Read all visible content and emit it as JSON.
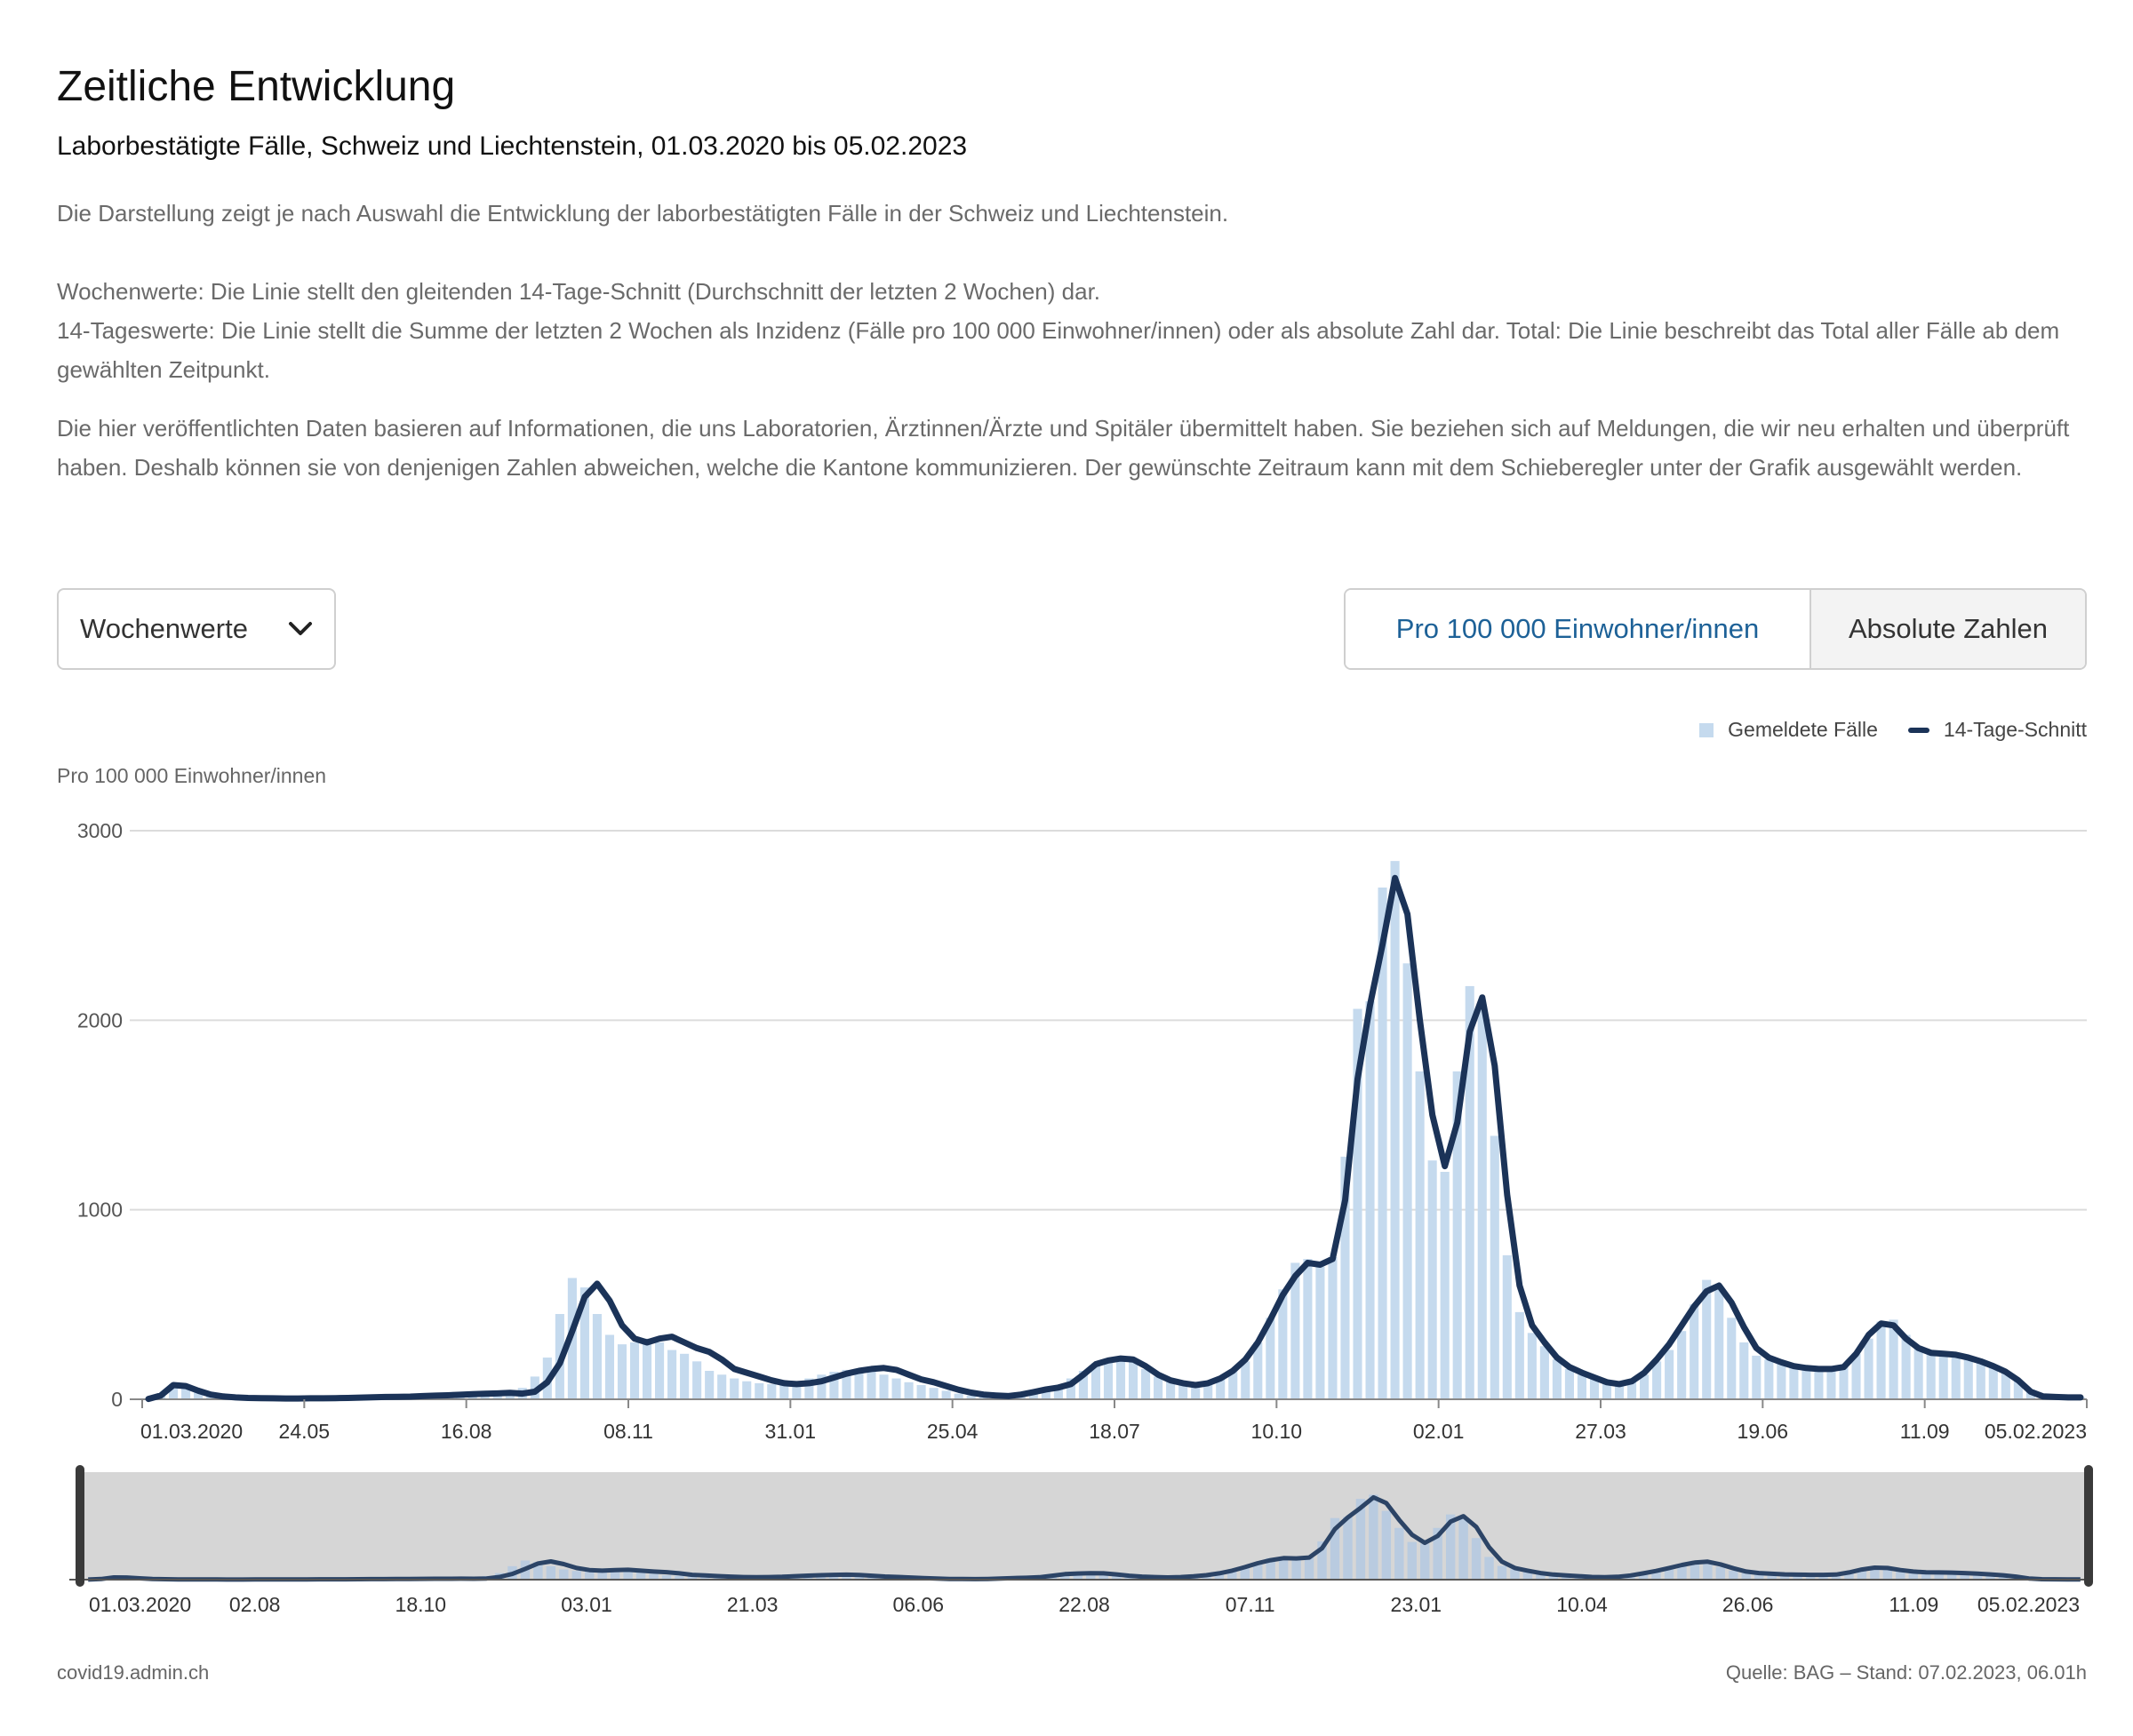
{
  "header": {
    "title": "Zeitliche Entwicklung",
    "subtitle": "Laborbestätigte Fälle, Schweiz und Liechtenstein, 01.03.2020 bis 05.02.2023"
  },
  "description": {
    "p1": "Die Darstellung zeigt je nach Auswahl die Entwicklung der laborbestätigten Fälle in der Schweiz und Liechtenstein.",
    "p2a": "Wochenwerte: Die Linie stellt den gleitenden 14-Tage-Schnitt (Durchschnitt der letzten 2 Wochen) dar.",
    "p2b": "14-Tageswerte: Die Linie stellt die Summe der letzten 2 Wochen als Inzidenz (Fälle pro 100 000 Einwohner/innen) oder als absolute Zahl dar. Total: Die Linie beschreibt das Total aller Fälle ab dem gewählten Zeitpunkt.",
    "p3": "Die hier veröffentlichten Daten basieren auf Informationen, die uns Laboratorien, Ärztinnen/Ärzte und Spitäler übermittelt haben. Sie beziehen sich auf Meldungen, die wir neu erhalten und überprüft haben. Deshalb können sie von denjenigen Zahlen abweichen, welche die Kantone kommunizieren. Der gewünschte Zeitraum kann mit dem Schieberegler unter der Grafik ausgewählt werden."
  },
  "controls": {
    "period_select": "Wochenwerte",
    "toggle": {
      "active": "Pro 100 000 Einwohner/innen",
      "inactive": "Absolute Zahlen"
    }
  },
  "legend": {
    "bars": "Gemeldete Fälle",
    "line": "14-Tage-Schnitt"
  },
  "footer": {
    "source_site": "covid19.admin.ch",
    "source_note": "Quelle: BAG – Stand: 07.02.2023, 06.01h"
  },
  "colors": {
    "bar": "#c5daee",
    "line": "#1b3358",
    "active_toggle_text": "#1d6197",
    "brush_bg": "#d6d6d6"
  },
  "chart_data": {
    "type": "bar",
    "ylabel": "Pro 100 000 Einwohner/innen",
    "ylim": [
      0,
      3000
    ],
    "yticks": [
      0,
      1000,
      2000,
      3000
    ],
    "grid": true,
    "legend_position": "top-right",
    "x_range": [
      "01.03.2020",
      "05.02.2023"
    ],
    "xtick_labels": [
      "01.03.2020",
      "24.05",
      "16.08",
      "08.11",
      "31.01",
      "25.04",
      "18.07",
      "10.10",
      "02.01",
      "27.03",
      "19.06",
      "11.09",
      "05.02.2023"
    ],
    "navigator_xtick_labels": [
      "01.03.2020",
      "02.08",
      "18.10",
      "03.01",
      "21.03",
      "06.06",
      "22.08",
      "07.11",
      "23.01",
      "10.04",
      "26.06",
      "11.09",
      "05.02.2023"
    ],
    "series": [
      {
        "name": "Gemeldete Fälle",
        "type": "bar",
        "values": [
          2,
          30,
          80,
          60,
          35,
          20,
          12,
          8,
          6,
          5,
          4,
          4,
          4,
          5,
          5,
          6,
          8,
          10,
          12,
          12,
          14,
          15,
          18,
          20,
          22,
          25,
          28,
          30,
          32,
          35,
          60,
          120,
          220,
          450,
          640,
          590,
          450,
          340,
          290,
          300,
          320,
          300,
          260,
          240,
          200,
          150,
          130,
          110,
          95,
          85,
          80,
          85,
          95,
          110,
          130,
          145,
          155,
          160,
          150,
          130,
          110,
          90,
          75,
          60,
          45,
          30,
          20,
          15,
          12,
          18,
          28,
          40,
          55,
          75,
          110,
          150,
          190,
          205,
          215,
          210,
          160,
          120,
          95,
          80,
          75,
          85,
          110,
          150,
          200,
          300,
          430,
          580,
          720,
          740,
          700,
          750,
          1280,
          2060,
          2100,
          2700,
          2840,
          2300,
          1730,
          1260,
          1200,
          1730,
          2180,
          2080,
          1390,
          760,
          460,
          350,
          280,
          210,
          160,
          130,
          110,
          95,
          85,
          90,
          130,
          200,
          260,
          360,
          500,
          630,
          590,
          430,
          300,
          230,
          210,
          190,
          180,
          170,
          160,
          160,
          170,
          240,
          320,
          410,
          420,
          340,
          280,
          250,
          240,
          230,
          220,
          200,
          180,
          140,
          100,
          50,
          20,
          12,
          10,
          10
        ]
      },
      {
        "name": "14-Tage-Schnitt",
        "type": "line",
        "values": [
          2,
          20,
          75,
          70,
          45,
          25,
          15,
          10,
          7,
          6,
          5,
          4,
          4,
          5,
          5,
          6,
          7,
          9,
          11,
          12,
          13,
          14,
          17,
          19,
          21,
          24,
          27,
          29,
          31,
          34,
          30,
          40,
          90,
          190,
          360,
          540,
          610,
          520,
          390,
          320,
          300,
          320,
          330,
          300,
          270,
          250,
          210,
          160,
          140,
          120,
          100,
          85,
          80,
          85,
          95,
          115,
          135,
          150,
          160,
          165,
          155,
          130,
          105,
          90,
          70,
          50,
          35,
          25,
          20,
          17,
          25,
          38,
          52,
          62,
          80,
          130,
          185,
          205,
          215,
          210,
          175,
          130,
          100,
          85,
          75,
          85,
          110,
          150,
          210,
          300,
          420,
          550,
          650,
          720,
          710,
          740,
          1050,
          1690,
          2080,
          2400,
          2750,
          2560,
          2000,
          1500,
          1230,
          1460,
          1940,
          2120,
          1760,
          1080,
          600,
          390,
          300,
          220,
          170,
          140,
          115,
          90,
          80,
          95,
          140,
          210,
          290,
          390,
          490,
          570,
          600,
          510,
          380,
          270,
          220,
          195,
          175,
          165,
          160,
          160,
          170,
          240,
          340,
          400,
          390,
          320,
          270,
          245,
          240,
          235,
          220,
          200,
          175,
          145,
          100,
          40,
          15,
          12,
          10,
          10
        ]
      }
    ]
  }
}
